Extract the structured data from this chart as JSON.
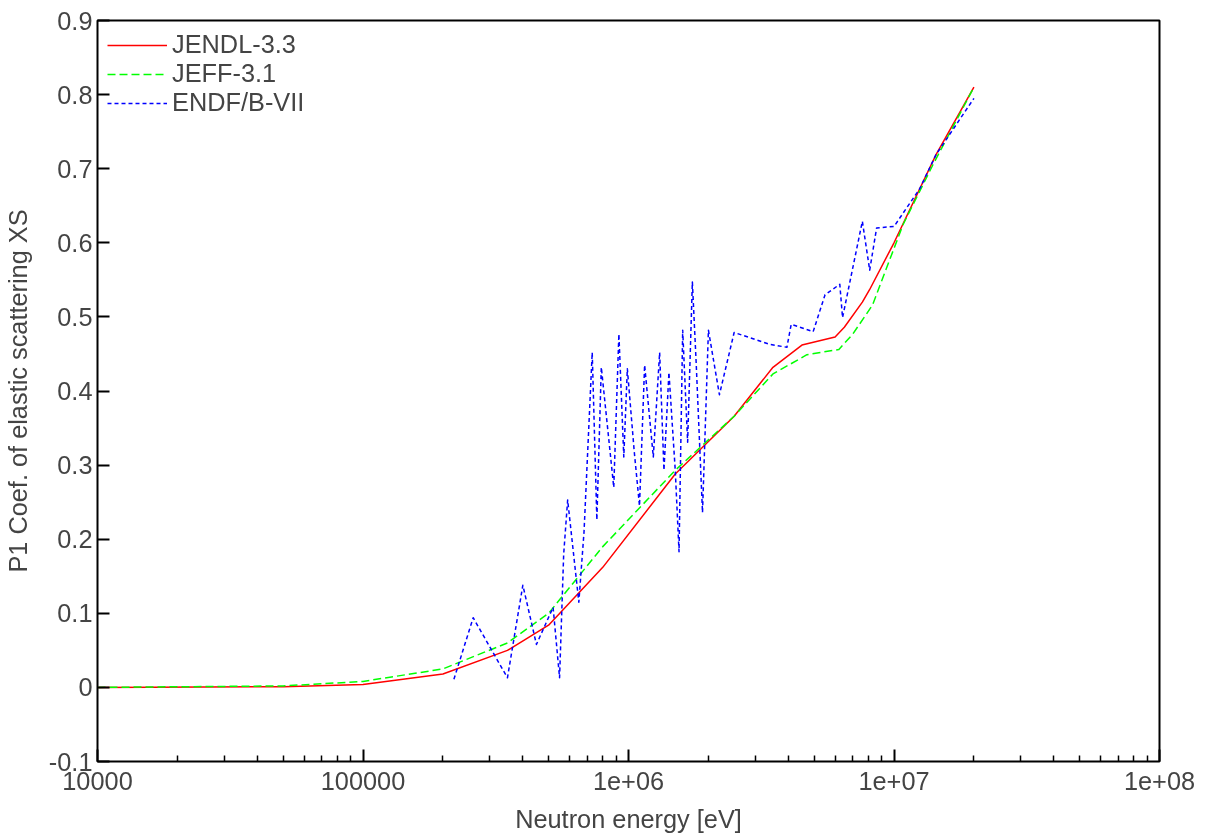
{
  "chart_data": {
    "type": "line",
    "xlabel": "Neutron energy [eV]",
    "ylabel": "P1 Coef. of elastic scattering XS",
    "log": "x",
    "xlim": [
      10000,
      100000000
    ],
    "ylim": [
      -0.1,
      0.9
    ],
    "xticks": [
      10000,
      100000,
      {
        "value": 1000000,
        "label": "1e+06"
      },
      {
        "value": 10000000,
        "label": "1e+07"
      },
      {
        "value": 100000000,
        "label": "1e+08"
      }
    ],
    "yticks": [
      -0.1,
      0,
      0.1,
      0.2,
      0.3,
      0.4,
      0.5,
      0.6,
      0.7,
      0.8,
      0.9
    ],
    "grid": false,
    "legend": "top left",
    "marker": "none",
    "series": [
      {
        "name": "JENDL-3.3",
        "color": "#ff0000",
        "line_style": "solid",
        "x": [
          10000,
          50000,
          100000,
          200000,
          350000,
          500000,
          800000,
          1500000,
          2500000,
          3500000,
          4500000,
          6000000,
          6500000,
          7600000,
          8100000,
          10000000,
          14400000,
          20000000
        ],
        "values": [
          0,
          0.001,
          0.004,
          0.018,
          0.05,
          0.084,
          0.162,
          0.288,
          0.366,
          0.432,
          0.462,
          0.473,
          0.486,
          0.52,
          0.537,
          0.6,
          0.719,
          0.81
        ]
      },
      {
        "name": "JEFF-3.1",
        "color": "#00ff00",
        "line_style": "dashed",
        "x": [
          10000,
          50000,
          100000,
          200000,
          350000,
          500000,
          800000,
          1500000,
          2500000,
          3500000,
          4700000,
          6200000,
          7000000,
          8300000,
          10800000,
          14000000,
          20000000
        ],
        "values": [
          0,
          0.002,
          0.008,
          0.025,
          0.06,
          0.1,
          0.19,
          0.293,
          0.366,
          0.423,
          0.449,
          0.456,
          0.477,
          0.516,
          0.624,
          0.705,
          0.81
        ]
      },
      {
        "name": "ENDF/B-VII",
        "color": "#0000ff",
        "line_style": "dotted",
        "x": [
          220000,
          260000,
          350000,
          400000,
          450000,
          520000,
          550000,
          570000,
          590000,
          650000,
          680000,
          730000,
          760000,
          790000,
          880000,
          920000,
          960000,
          990000,
          1050000,
          1100000,
          1150000,
          1240000,
          1310000,
          1360000,
          1420000,
          1500000,
          1550000,
          1600000,
          1670000,
          1740000,
          1800000,
          1900000,
          2000000,
          2200000,
          2500000,
          3400000,
          3950000,
          4100000,
          4960000,
          5500000,
          6250000,
          6400000,
          7600000,
          8100000,
          8600000,
          10000000,
          12500000,
          14400000,
          20000000
        ],
        "values": [
          0.011,
          0.094,
          0.013,
          0.138,
          0.058,
          0.108,
          0.013,
          0.18,
          0.253,
          0.115,
          0.21,
          0.452,
          0.226,
          0.432,
          0.27,
          0.477,
          0.311,
          0.43,
          0.32,
          0.245,
          0.435,
          0.311,
          0.452,
          0.293,
          0.425,
          0.293,
          0.183,
          0.482,
          0.331,
          0.547,
          0.435,
          0.236,
          0.482,
          0.395,
          0.479,
          0.463,
          0.459,
          0.49,
          0.48,
          0.53,
          0.544,
          0.499,
          0.629,
          0.563,
          0.62,
          0.622,
          0.673,
          0.719,
          0.795
        ]
      }
    ]
  }
}
